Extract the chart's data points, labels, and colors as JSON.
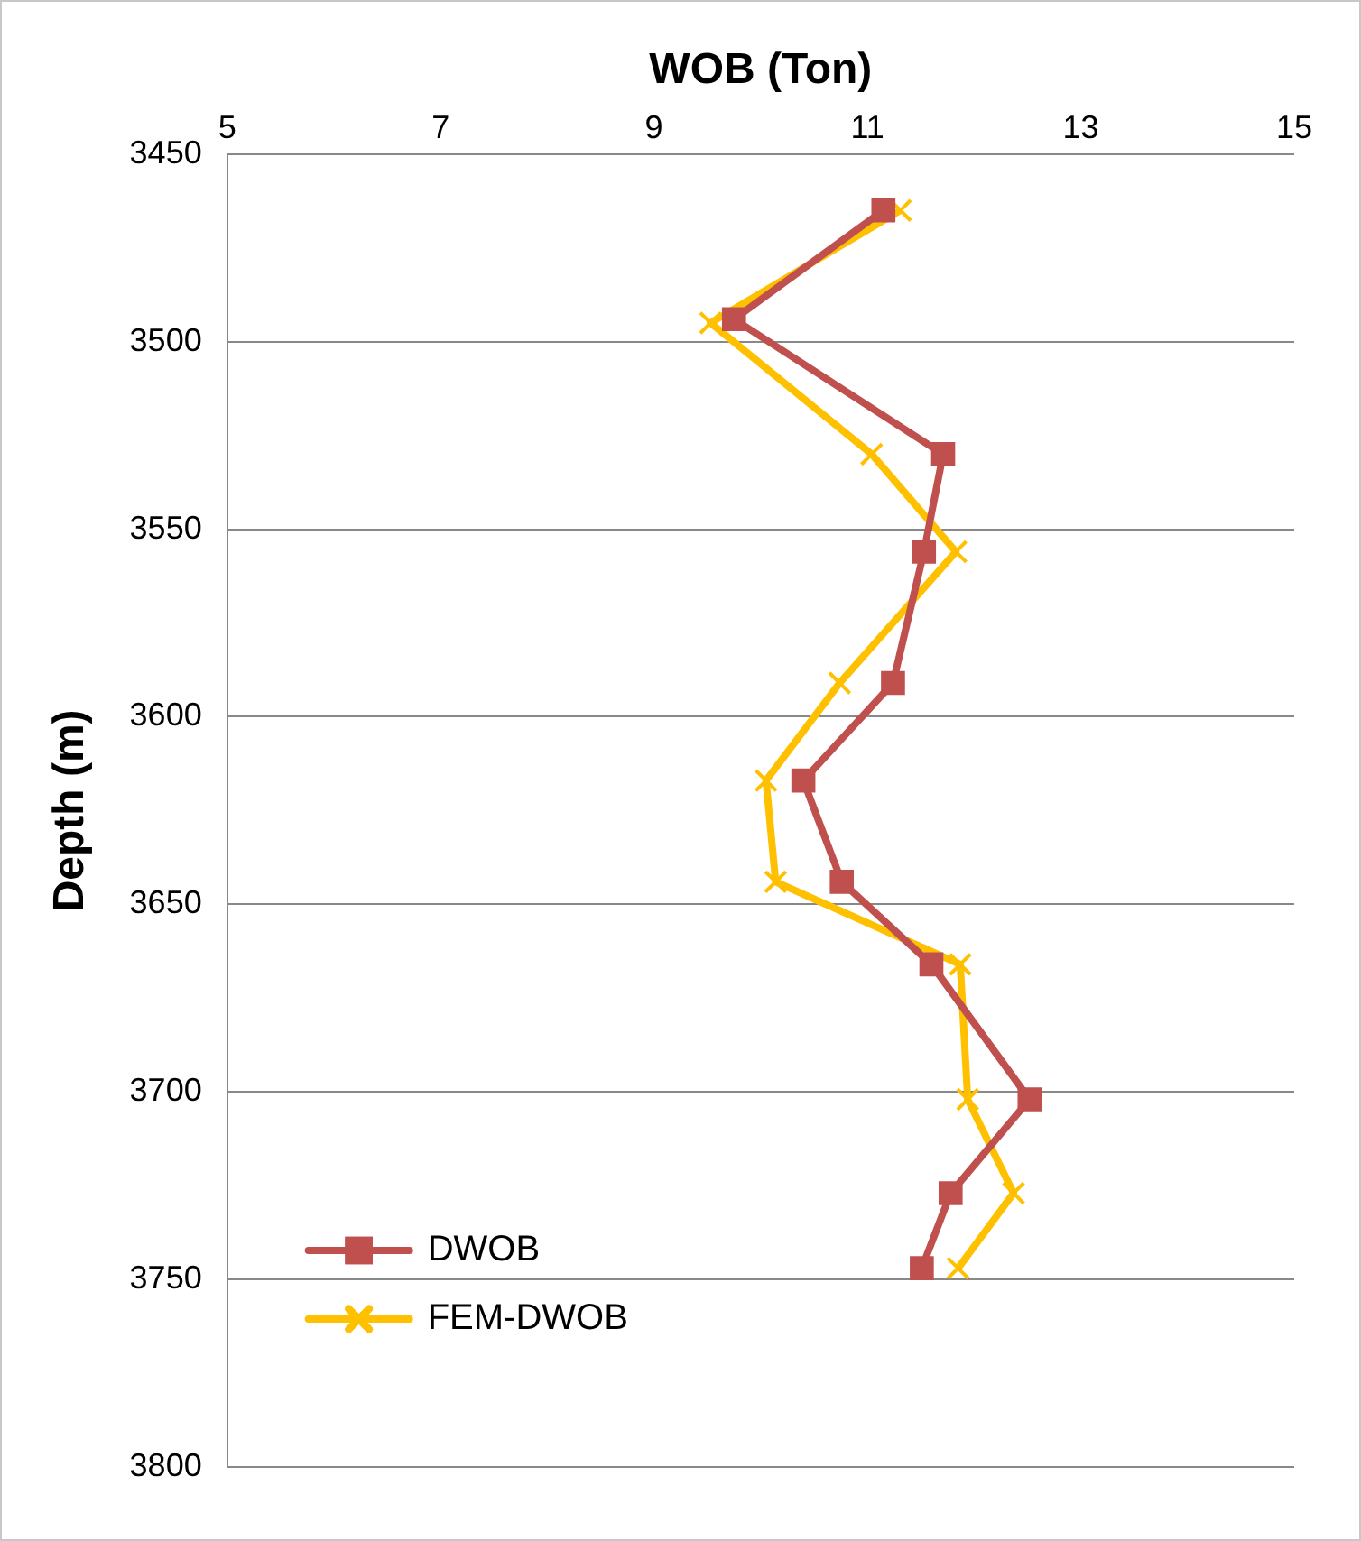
{
  "chart_data": {
    "type": "line",
    "xlabel": "WOB (Ton)",
    "ylabel": "Depth (m)",
    "xlim": [
      5,
      15
    ],
    "xticks": [
      5,
      7,
      9,
      11,
      13,
      15
    ],
    "ylim": [
      3800,
      3450
    ],
    "yticks": [
      3450,
      3500,
      3550,
      3600,
      3650,
      3700,
      3750,
      3800
    ],
    "grid": "y",
    "legend": "bottom left",
    "line_style": "solid",
    "series": [
      {
        "name": "DWOB",
        "color": "#c0504d",
        "marker": "square",
        "x": [
          11.15,
          9.75,
          11.71,
          11.53,
          11.24,
          10.4,
          10.76,
          11.6,
          12.52,
          11.78,
          11.51
        ],
        "values": [
          3465,
          3494,
          3530,
          3556,
          3591,
          3617,
          3644,
          3666,
          3702,
          3727,
          3747
        ]
      },
      {
        "name": "FEM-DWOB",
        "color": "#ffc000",
        "marker": "cross",
        "x": [
          11.31,
          9.53,
          11.04,
          11.83,
          10.74,
          10.05,
          10.14,
          11.87,
          11.94,
          12.37,
          11.85
        ],
        "values": [
          3465,
          3495,
          3530,
          3556,
          3591,
          3617,
          3644,
          3666,
          3702,
          3727,
          3747
        ]
      }
    ]
  }
}
